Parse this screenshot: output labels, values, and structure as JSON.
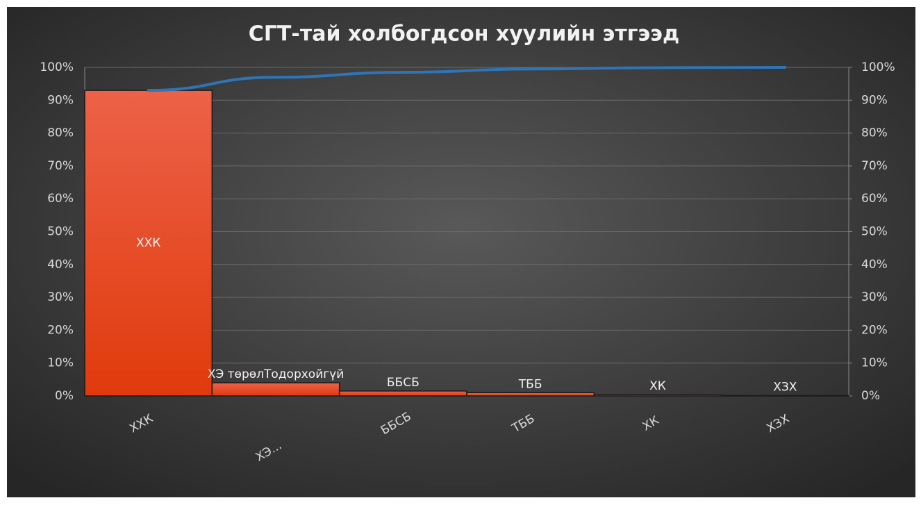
{
  "chart_data": {
    "type": "pareto",
    "title": "СГТ-тай холбогдсон хуулийн этгээд",
    "categories": [
      "ХХК",
      "ХЭ төрөлТодорхойгүй",
      "ББСБ",
      "ТББ",
      "ХК",
      "ХЗХ"
    ],
    "tick_labels": [
      "ХХК",
      "ХЭ...",
      "ББСБ",
      "ТББ",
      "ХК",
      "ХЗХ"
    ],
    "series": [
      {
        "type": "bar",
        "color": "#e8461e",
        "values": [
          93,
          4,
          1.5,
          1,
          0.4,
          0.1
        ]
      },
      {
        "type": "line",
        "axis": "y2",
        "color": "#2e75b6",
        "values": [
          93,
          97,
          98.5,
          99.5,
          99.9,
          100
        ]
      }
    ],
    "ylim": [
      0,
      100
    ],
    "yticks": [
      {
        "value": 0,
        "label": "0%"
      },
      {
        "value": 10,
        "label": "10%"
      },
      {
        "value": 20,
        "label": "20%"
      },
      {
        "value": 30,
        "label": "30%"
      },
      {
        "value": 40,
        "label": "40%"
      },
      {
        "value": 50,
        "label": "50%"
      },
      {
        "value": 60,
        "label": "60%"
      },
      {
        "value": 70,
        "label": "70%"
      },
      {
        "value": 80,
        "label": "80%"
      },
      {
        "value": 90,
        "label": "90%"
      },
      {
        "value": 100,
        "label": "100%"
      }
    ],
    "y2lim": [
      0,
      100
    ],
    "y2ticks": [
      {
        "value": 0,
        "label": "0%"
      },
      {
        "value": 10,
        "label": "10%"
      },
      {
        "value": 20,
        "label": "20%"
      },
      {
        "value": 30,
        "label": "30%"
      },
      {
        "value": 40,
        "label": "40%"
      },
      {
        "value": 50,
        "label": "50%"
      },
      {
        "value": 60,
        "label": "60%"
      },
      {
        "value": 70,
        "label": "70%"
      },
      {
        "value": 80,
        "label": "80%"
      },
      {
        "value": 90,
        "label": "90%"
      },
      {
        "value": 100,
        "label": "100%"
      }
    ],
    "grid": true
  }
}
